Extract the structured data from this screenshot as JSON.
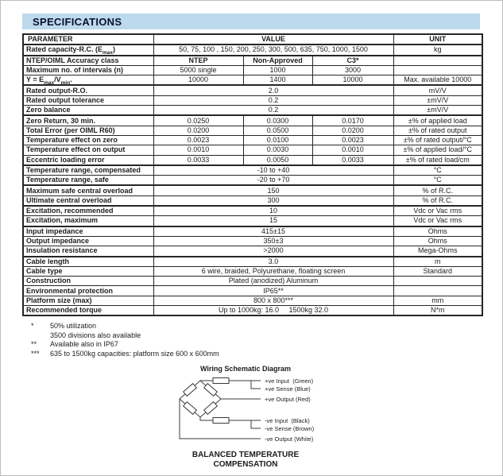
{
  "page": {
    "title": "SPECIFICATIONS"
  },
  "colors": {
    "header_bg": "#bdd9ec",
    "header_text": "#0b1030",
    "table_border": "#262626",
    "text": "#1c1c1c"
  },
  "table": {
    "columns": {
      "parameter": "PARAMETER",
      "value": "VALUE",
      "unit": "UNIT"
    },
    "rows": [
      {
        "param": "Rated capacity-R.C. (E_{max})",
        "values": [
          "50, 75, 100 , 150, 200, 250, 300, 500, 635, 750, 1000, 1500"
        ],
        "unit": "kg"
      },
      {
        "param": "NTEP/OIML Accuracy class",
        "values": [
          "NTEP",
          "Non-Approved",
          "C3*"
        ],
        "unit": "",
        "thick_top": true,
        "bold_values": true
      },
      {
        "param": "Maximum no. of intervals (n)",
        "values": [
          "5000 single",
          "1000",
          "3000"
        ],
        "unit": ""
      },
      {
        "param": "Y = E_{max}/V_{min}.",
        "values": [
          "10000",
          "1400",
          "10000"
        ],
        "unit": "Max. available 10000"
      },
      {
        "param": "Rated output-R.O.",
        "values": [
          "2.0"
        ],
        "unit": "mV/V",
        "thick_top": true
      },
      {
        "param": "Rated output tolerance",
        "values": [
          "0.2"
        ],
        "unit": "±mV/V"
      },
      {
        "param": "Zero balance",
        "values": [
          "0.2"
        ],
        "unit": "±mV/V"
      },
      {
        "param": "Zero Return, 30 min.",
        "values": [
          "0.0250",
          "0.0300",
          "0.0170"
        ],
        "unit": "±% of applied load",
        "thick_top": true
      },
      {
        "param": "Total Error (per OIML R60)",
        "values": [
          "0.0200",
          "0.0500",
          "0.0200"
        ],
        "unit": "±% of rated output"
      },
      {
        "param": "Temperature effect on zero",
        "values": [
          "0.0023",
          "0.0100",
          "0.0023"
        ],
        "unit": "±% of rated output/°C"
      },
      {
        "param": "Temperature effect on output",
        "values": [
          "0.0010",
          "0.0030",
          "0.0010"
        ],
        "unit": "±% of applied load/°C"
      },
      {
        "param": "Eccentric loading error",
        "values": [
          "0.0033",
          "0.0050",
          "0.0033"
        ],
        "unit": "±% of rated load/cm"
      },
      {
        "param": "Temperature range, compensated",
        "values": [
          "-10 to +40"
        ],
        "unit": "°C",
        "thick_top": true
      },
      {
        "param": "Temperature range, safe",
        "values": [
          "-20 to +70"
        ],
        "unit": "°C"
      },
      {
        "param": "Maximum safe central overload",
        "values": [
          "150"
        ],
        "unit": "% of R.C.",
        "thick_top": true
      },
      {
        "param": "Ultimate central overload",
        "values": [
          "300"
        ],
        "unit": "% of R.C."
      },
      {
        "param": "Excitation, recommended",
        "values": [
          "10"
        ],
        "unit": "Vdc or Vac rms",
        "thick_top": true
      },
      {
        "param": "Excitation, maximum",
        "values": [
          "15"
        ],
        "unit": "Vdc or Vac rms"
      },
      {
        "param": "Input impedance",
        "values": [
          "415±15"
        ],
        "unit": "Ohms",
        "thick_top": true
      },
      {
        "param": "Output impedance",
        "values": [
          "350±3"
        ],
        "unit": "Ohms"
      },
      {
        "param": "Insulation resistance",
        "values": [
          ">2000"
        ],
        "unit": "Mega-Ohms"
      },
      {
        "param": "Cable length",
        "values": [
          "3.0"
        ],
        "unit": "m",
        "thick_top": true
      },
      {
        "param": "Cable type",
        "values": [
          "6 wire, braided, Polyurethane, floating screen"
        ],
        "unit": "Standard"
      },
      {
        "param": "Construction",
        "values": [
          "Plated (anodized) Aluminum"
        ],
        "unit": ""
      },
      {
        "param": "Environmental protection",
        "values": [
          "IP65**"
        ],
        "unit": ""
      },
      {
        "param": "Platform size (max)",
        "values": [
          "800 x 800***"
        ],
        "unit": "mm"
      },
      {
        "param": "Recommended torque",
        "values": [
          "Up to 1000kg: 16.0     1500kg 32.0"
        ],
        "unit": "N*m"
      }
    ]
  },
  "footnotes": [
    {
      "marker": "*",
      "lines": [
        "50% utilization",
        "3500 divisions also available"
      ]
    },
    {
      "marker": "**",
      "lines": [
        "Available also in IP67"
      ]
    },
    {
      "marker": "***",
      "lines": [
        "635 to 1500kg capacities: platform size 600 x 600mm"
      ]
    }
  ],
  "diagram": {
    "title": "Wiring Schematic Diagram",
    "labels": {
      "pos_input": "+ve Input  (Green)",
      "pos_sense": "+ve Sense (Blue)",
      "pos_output": "+ve Output (Red)",
      "neg_input": "-ve Input  (Black)",
      "neg_sense": "-ve Sense (Brown)",
      "neg_output": "-ve Output (White)"
    },
    "caption_line1": "BALANCED TEMPERATURE",
    "caption_line2": "COMPENSATION"
  }
}
